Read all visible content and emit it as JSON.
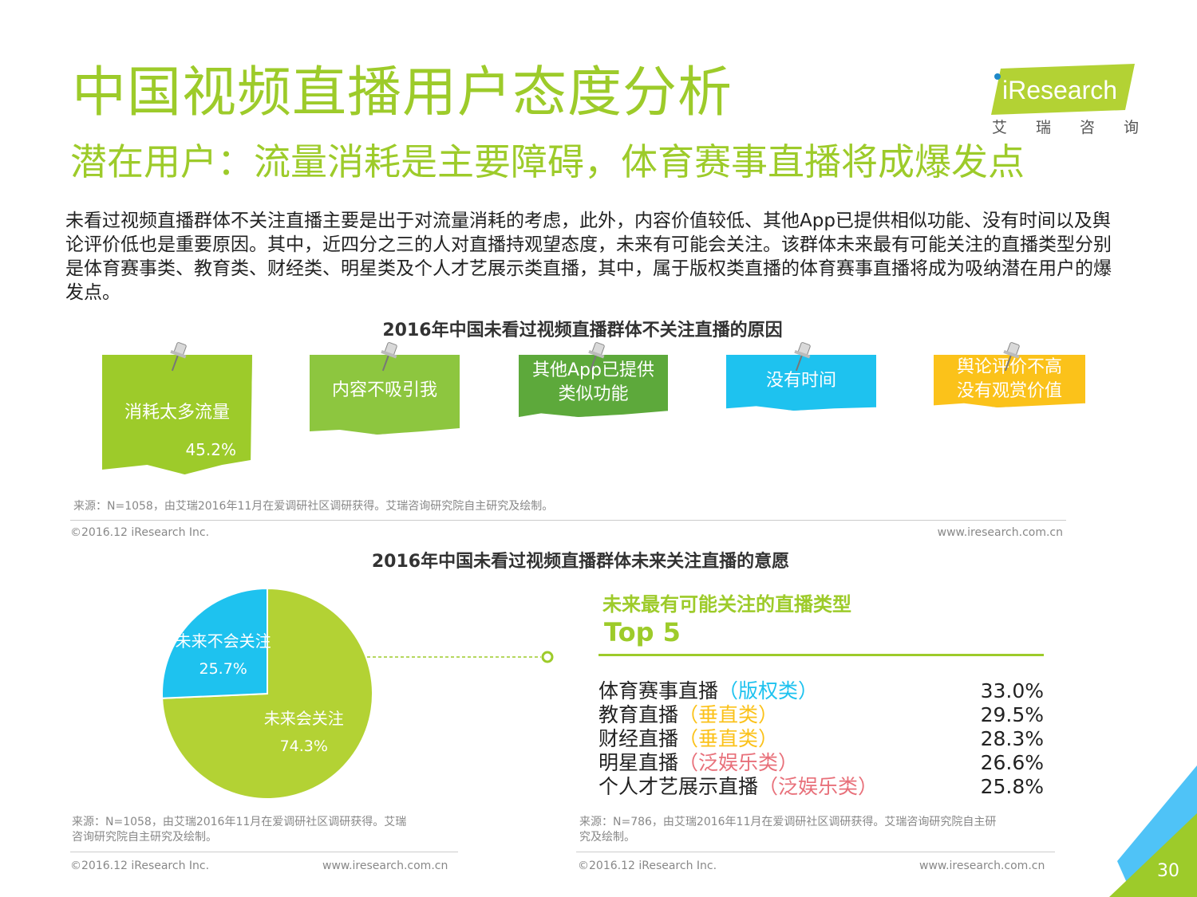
{
  "header": {
    "title": "中国视频直播用户态度分析",
    "subtitle": "潜在用户：流量消耗是主要障碍，体育赛事直播将成爆发点",
    "logo_text": "iResearch",
    "logo_tagline": "艾瑞咨询"
  },
  "intro": "未看过视频直播群体不关注直播主要是出于对流量消耗的考虑，此外，内容价值较低、其他App已提供相似功能、没有时间以及舆论评价低也是重要原因。其中，近四分之三的人对直播持观望态度，未来有可能会关注。该群体未来最有可能关注的直播类型分别是体育赛事类、教育类、财经类、明星类及个人才艺展示类直播，其中，属于版权类直播的体育赛事直播将成为吸纳潜在用户的爆发点。",
  "colors": {
    "green": "#9DCB2A",
    "light_green": "#B3D234",
    "dark_green": "#5DA93B",
    "blue": "#1EC2EF",
    "yellow": "#FBC21A",
    "gray": "#888888",
    "pink": "#E8707A"
  },
  "reasons": {
    "title": "2016年中国未看过视频直播群体不关注直播的原因",
    "notes": [
      {
        "label_lines": [
          "消耗太多流量"
        ],
        "value": "45.2%",
        "color": "#9DCB2A"
      },
      {
        "label_lines": [
          "内容不吸引我"
        ],
        "value": "",
        "color": "#8DC63F"
      },
      {
        "label_lines": [
          "其他App已提供",
          "类似功能"
        ],
        "value": "",
        "color": "#5DA93B"
      },
      {
        "label_lines": [
          "没有时间"
        ],
        "value": "",
        "color": "#1EC2EF"
      },
      {
        "label_lines": [
          "舆论评价不高",
          "没有观赏价值"
        ],
        "value": "",
        "color": "#FBC21A"
      }
    ],
    "source": "来源：N=1058，由艾瑞2016年11月在爱调研社区调研获得。艾瑞咨询研究院自主研究及绘制。",
    "copyright": "©2016.12 iResearch Inc.",
    "website": "www.iresearch.com.cn"
  },
  "chart_data": {
    "type": "pie",
    "title": "2016年中国未看过视频直播群体未来关注直播的意愿",
    "slices": [
      {
        "name": "未来会关注",
        "value": 74.3,
        "value_label": "74.3%",
        "color": "#B3D234"
      },
      {
        "name": "未来不会关注",
        "value": 25.7,
        "value_label": "25.7%",
        "color": "#1EC2EF"
      }
    ]
  },
  "pie_footer": {
    "source_lines": [
      "来源：N=1058，由艾瑞2016年11月在爱调研社区调研获得。艾瑞",
      "咨询研究院自主研究及绘制。"
    ],
    "copyright": "©2016.12 iResearch Inc.",
    "website": "www.iresearch.com.cn"
  },
  "top5": {
    "heading": "未来最有可能关注的直播类型",
    "top_label": "Top 5",
    "items": [
      {
        "name": "体育赛事直播",
        "tag": "（版权类）",
        "tag_color": "#1EC2EF",
        "value": "33.0%"
      },
      {
        "name": "教育直播",
        "tag": "（垂直类）",
        "tag_color": "#FBC21A",
        "value": "29.5%"
      },
      {
        "name": "财经直播",
        "tag": "（垂直类）",
        "tag_color": "#FBC21A",
        "value": "28.3%"
      },
      {
        "name": "明星直播",
        "tag": "（泛娱乐类）",
        "tag_color": "#E8707A",
        "value": "26.6%"
      },
      {
        "name": "个人才艺展示直播",
        "tag": "（泛娱乐类）",
        "tag_color": "#E8707A",
        "value": "25.8%"
      }
    ],
    "source_lines": [
      "来源：N=786，由艾瑞2016年11月在爱调研社区调研获得。艾瑞咨询研究院自主研",
      "究及绘制。"
    ],
    "copyright": "©2016.12 iResearch Inc.",
    "website": "www.iresearch.com.cn"
  },
  "page_number": "30"
}
